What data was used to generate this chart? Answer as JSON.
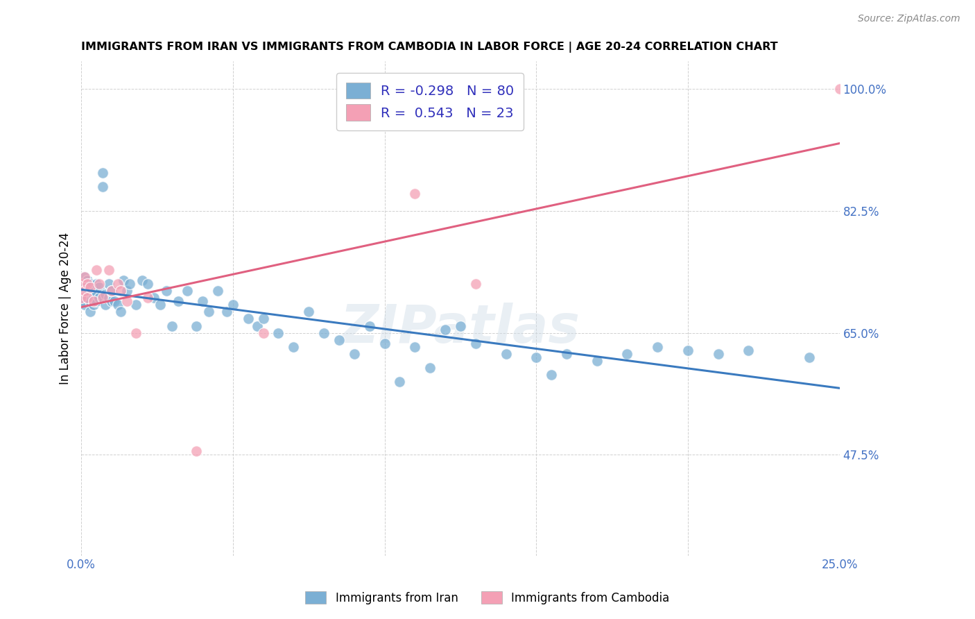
{
  "title": "IMMIGRANTS FROM IRAN VS IMMIGRANTS FROM CAMBODIA IN LABOR FORCE | AGE 20-24 CORRELATION CHART",
  "source": "Source: ZipAtlas.com",
  "ylabel": "In Labor Force | Age 20-24",
  "x_min": 0.0,
  "x_max": 0.25,
  "y_min": 0.33,
  "y_max": 1.04,
  "x_ticks": [
    0.0,
    0.05,
    0.1,
    0.15,
    0.2,
    0.25
  ],
  "y_ticks": [
    0.475,
    0.65,
    0.825,
    1.0
  ],
  "iran_color": "#7bafd4",
  "cambodia_color": "#f4a0b5",
  "iran_R": -0.298,
  "iran_N": 80,
  "cambodia_R": 0.543,
  "cambodia_N": 23,
  "iran_line_color": "#3a7abf",
  "cambodia_line_color": "#e06080",
  "watermark": "ZIPatlas",
  "legend_iran": "Immigrants from Iran",
  "legend_cambodia": "Immigrants from Cambodia",
  "iran_points_x": [
    0.0,
    0.0,
    0.001,
    0.001,
    0.001,
    0.001,
    0.001,
    0.002,
    0.002,
    0.002,
    0.002,
    0.003,
    0.003,
    0.003,
    0.003,
    0.004,
    0.004,
    0.004,
    0.005,
    0.005,
    0.005,
    0.006,
    0.006,
    0.007,
    0.007,
    0.008,
    0.008,
    0.009,
    0.009,
    0.01,
    0.01,
    0.011,
    0.012,
    0.013,
    0.014,
    0.015,
    0.016,
    0.018,
    0.02,
    0.022,
    0.024,
    0.026,
    0.028,
    0.03,
    0.032,
    0.035,
    0.038,
    0.04,
    0.042,
    0.045,
    0.048,
    0.05,
    0.055,
    0.058,
    0.06,
    0.065,
    0.07,
    0.075,
    0.08,
    0.085,
    0.09,
    0.095,
    0.1,
    0.105,
    0.11,
    0.115,
    0.12,
    0.125,
    0.13,
    0.14,
    0.15,
    0.155,
    0.16,
    0.17,
    0.18,
    0.19,
    0.2,
    0.21,
    0.22,
    0.24
  ],
  "iran_points_y": [
    0.72,
    0.695,
    0.73,
    0.715,
    0.7,
    0.71,
    0.69,
    0.725,
    0.705,
    0.715,
    0.7,
    0.695,
    0.71,
    0.72,
    0.68,
    0.69,
    0.7,
    0.71,
    0.72,
    0.695,
    0.705,
    0.715,
    0.7,
    0.88,
    0.86,
    0.69,
    0.705,
    0.72,
    0.7,
    0.71,
    0.695,
    0.695,
    0.69,
    0.68,
    0.725,
    0.71,
    0.72,
    0.69,
    0.725,
    0.72,
    0.7,
    0.69,
    0.71,
    0.66,
    0.695,
    0.71,
    0.66,
    0.695,
    0.68,
    0.71,
    0.68,
    0.69,
    0.67,
    0.66,
    0.67,
    0.65,
    0.63,
    0.68,
    0.65,
    0.64,
    0.62,
    0.66,
    0.635,
    0.58,
    0.63,
    0.6,
    0.655,
    0.66,
    0.635,
    0.62,
    0.615,
    0.59,
    0.62,
    0.61,
    0.62,
    0.63,
    0.625,
    0.62,
    0.625,
    0.615
  ],
  "cambodia_points_x": [
    0.0,
    0.0,
    0.001,
    0.001,
    0.002,
    0.002,
    0.003,
    0.004,
    0.005,
    0.006,
    0.007,
    0.009,
    0.01,
    0.012,
    0.013,
    0.015,
    0.018,
    0.022,
    0.038,
    0.06,
    0.11,
    0.13,
    0.25
  ],
  "cambodia_points_y": [
    0.72,
    0.7,
    0.73,
    0.71,
    0.7,
    0.72,
    0.715,
    0.695,
    0.74,
    0.72,
    0.7,
    0.74,
    0.71,
    0.72,
    0.71,
    0.695,
    0.65,
    0.7,
    0.48,
    0.65,
    0.85,
    0.72,
    1.0
  ]
}
